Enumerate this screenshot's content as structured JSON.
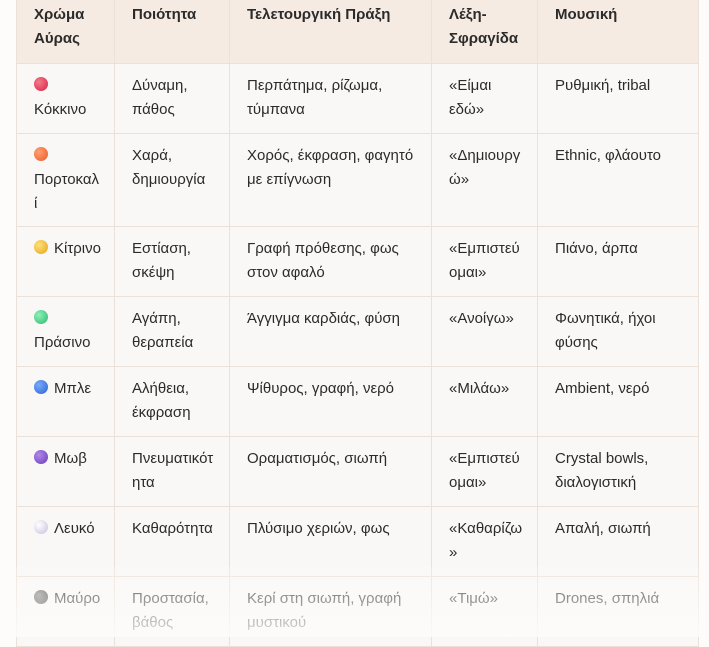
{
  "table": {
    "header": [
      "Χρώμα Αύρας",
      "Ποιότητα",
      "Τελετουργική Πράξη",
      "Λέξη-Σφραγίδα",
      "Μουσική"
    ],
    "rows": [
      [
        "Κόκκινο",
        "Δύναμη, πάθος",
        "Περπάτημα, ρίζωμα, τύμπανα",
        "«Είμαι εδώ»",
        "Ρυθμική, tribal"
      ],
      [
        "Πορτοκαλί",
        "Χαρά, δημιουργία",
        "Χορός, έκφραση, φαγητό με επίγνωση",
        "«Δημιουργώ»",
        "Ethnic, φλάουτο"
      ],
      [
        "Κίτρινο",
        "Εστίαση, σκέψη",
        "Γραφή πρόθεσης, φως στον αφαλό",
        "«Εμπιστεύομαι»",
        "Πιάνο, άρπα"
      ],
      [
        "Πράσινο",
        "Αγάπη, θεραπεία",
        "Άγγιγμα καρδιάς, φύση",
        "«Ανοίγω»",
        "Φωνητικά, ήχοι φύσης"
      ],
      [
        "Μπλε",
        "Αλήθεια, έκφραση",
        "Ψίθυρος, γραφή, νερό",
        "«Μιλάω»",
        "Ambient, νερό"
      ],
      [
        "Μωβ",
        "Πνευματικότητα",
        "Οραματισμός, σιωπή",
        "«Εμπιστεύομαι»",
        "Crystal bowls, διαλογιστική"
      ],
      [
        "Λευκό",
        "Καθαρότητα",
        "Πλύσιμο χεριών, φως",
        "«Καθαρίζω»",
        "Απαλή, σιωπή"
      ],
      [
        "Μαύρο",
        "Προστασία, βάθος",
        "Κερί στη σιωπή, γραφή μυστικού",
        "«Τιμώ»",
        "Drones, σπηλιά"
      ]
    ]
  }
}
